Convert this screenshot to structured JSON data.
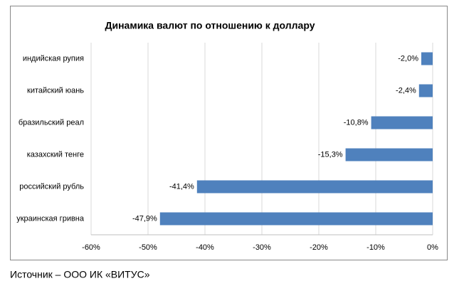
{
  "chart_data": {
    "type": "hbar",
    "title": "Динамика валют по отношению к доллару",
    "categories": [
      "индийская рупия",
      "китайский юань",
      "бразильский реал",
      "казахский тенге",
      "российский рубль",
      "украинская гривна"
    ],
    "values": [
      -2.0,
      -2.4,
      -10.8,
      -15.3,
      -41.4,
      -47.9
    ],
    "value_labels": [
      "-2,0%",
      "-2,4%",
      "-10,8%",
      "-15,3%",
      "-41,4%",
      "-47,9%"
    ],
    "color": "#4f81bd",
    "xlim": [
      -60,
      0
    ],
    "xticks": [
      {
        "value": -60,
        "label": "-60%"
      },
      {
        "value": -50,
        "label": "-50%"
      },
      {
        "value": -40,
        "label": "-40%"
      },
      {
        "value": -30,
        "label": "-30%"
      },
      {
        "value": -20,
        "label": "-20%"
      },
      {
        "value": -10,
        "label": "-10%"
      },
      {
        "value": 0,
        "label": "0%"
      }
    ],
    "grid": true,
    "source": "Источник – ООО ИК «ВИТУС»"
  }
}
